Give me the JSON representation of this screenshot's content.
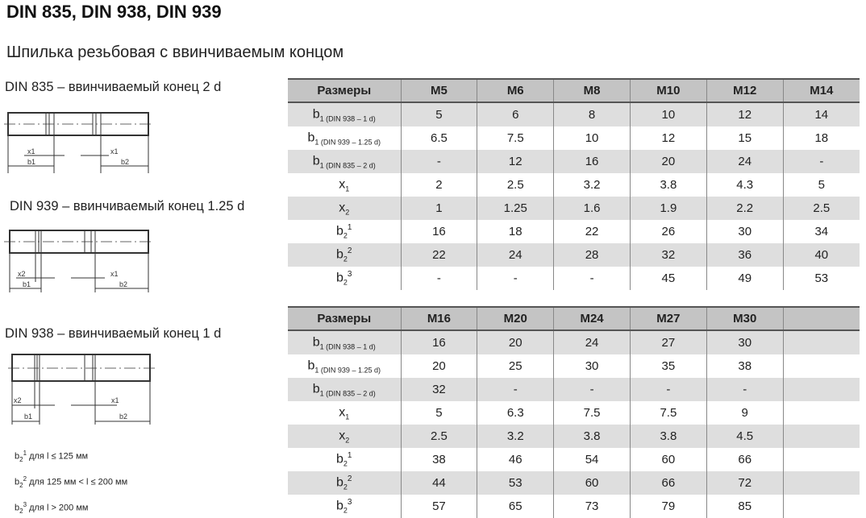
{
  "title": "DIN 835, DIN 938, DIN 939",
  "subtitle": "Шпилька резьбовая с ввинчиваемым концом",
  "drawings": [
    {
      "label": "DIN 835 – ввинчиваемый конец 2 d",
      "dims": [
        "x1",
        "x1",
        "b1",
        "b2"
      ]
    },
    {
      "label": "DIN 939 – ввинчиваемый конец 1.25 d",
      "dims": [
        "x2",
        "x1",
        "b1",
        "b2"
      ]
    },
    {
      "label": "DIN 938 – ввинчиваемый конец 1 d",
      "dims": [
        "x2",
        "x1",
        "b1",
        "b2"
      ]
    }
  ],
  "notes": [
    {
      "base": "b",
      "sub": "2",
      "sup": "1",
      "text": "для l ≤ 125 мм"
    },
    {
      "base": "b",
      "sub": "2",
      "sup": "2",
      "text": "для 125 мм < l ≤ 200 мм"
    },
    {
      "base": "b",
      "sub": "2",
      "sup": "3",
      "text": "для l > 200 мм"
    }
  ],
  "row_labels": [
    {
      "base": "b",
      "sub": "1 (DIN 938 – 1 d)",
      "sup": ""
    },
    {
      "base": "b",
      "sub": "1 (DIN 939 – 1.25 d)",
      "sup": ""
    },
    {
      "base": "b",
      "sub": "1 (DIN 835 – 2 d)",
      "sup": ""
    },
    {
      "base": "x",
      "sub": "1",
      "sup": ""
    },
    {
      "base": "x",
      "sub": "2",
      "sup": ""
    },
    {
      "base": "b",
      "sub": "2",
      "sup": "1"
    },
    {
      "base": "b",
      "sub": "2",
      "sup": "2"
    },
    {
      "base": "b",
      "sub": "2",
      "sup": "3"
    }
  ],
  "tables": [
    {
      "header": [
        "Размеры",
        "M5",
        "M6",
        "M8",
        "M10",
        "M12",
        "M14"
      ],
      "rows": [
        [
          "5",
          "6",
          "8",
          "10",
          "12",
          "14"
        ],
        [
          "6.5",
          "7.5",
          "10",
          "12",
          "15",
          "18"
        ],
        [
          "-",
          "12",
          "16",
          "20",
          "24",
          "-"
        ],
        [
          "2",
          "2.5",
          "3.2",
          "3.8",
          "4.3",
          "5"
        ],
        [
          "1",
          "1.25",
          "1.6",
          "1.9",
          "2.2",
          "2.5"
        ],
        [
          "16",
          "18",
          "22",
          "26",
          "30",
          "34"
        ],
        [
          "22",
          "24",
          "28",
          "32",
          "36",
          "40"
        ],
        [
          "-",
          "-",
          "-",
          "45",
          "49",
          "53"
        ]
      ]
    },
    {
      "header": [
        "Размеры",
        "M16",
        "M20",
        "M24",
        "M27",
        "M30",
        ""
      ],
      "rows": [
        [
          "16",
          "20",
          "24",
          "27",
          "30",
          ""
        ],
        [
          "20",
          "25",
          "30",
          "35",
          "38",
          ""
        ],
        [
          "32",
          "-",
          "-",
          "-",
          "-",
          ""
        ],
        [
          "5",
          "6.3",
          "7.5",
          "7.5",
          "9",
          ""
        ],
        [
          "2.5",
          "3.2",
          "3.8",
          "3.8",
          "4.5",
          ""
        ],
        [
          "38",
          "46",
          "54",
          "60",
          "66",
          ""
        ],
        [
          "44",
          "53",
          "60",
          "66",
          "72",
          ""
        ],
        [
          "57",
          "65",
          "73",
          "79",
          "85",
          ""
        ]
      ]
    }
  ],
  "colors": {
    "header_bg": "#c4c4c4",
    "stripe_bg": "#dedede",
    "border": "#555555"
  }
}
